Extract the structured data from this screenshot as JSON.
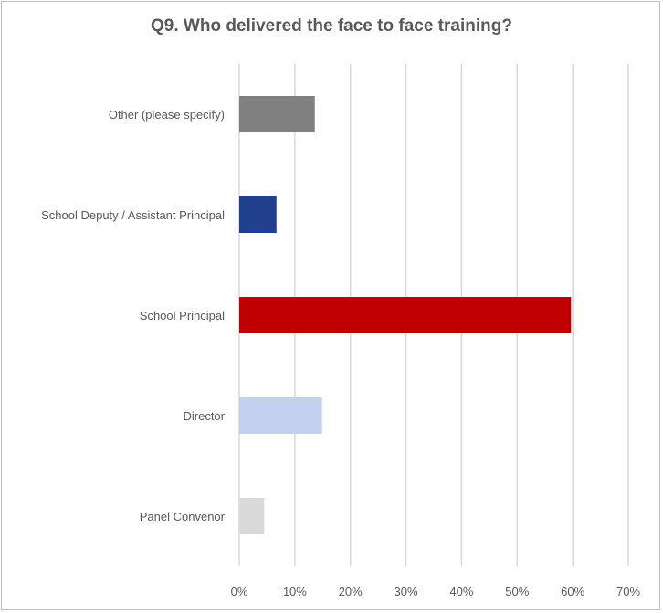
{
  "chart_data": {
    "type": "bar",
    "orientation": "horizontal",
    "title": "Q9. Who delivered the face to face training?",
    "categories": [
      "Other (please specify)",
      "School Deputy / Assistant Principal",
      "School Principal",
      "Director",
      "Panel Convenor"
    ],
    "values": [
      0.136,
      0.067,
      0.597,
      0.149,
      0.045
    ],
    "colors": [
      "#808080",
      "#213f8f",
      "#c00000",
      "#c3d0f0",
      "#d9d9d9"
    ],
    "xlim": [
      0,
      0.7
    ],
    "xticks": [
      0,
      0.1,
      0.2,
      0.3,
      0.4,
      0.5,
      0.6,
      0.7
    ],
    "xtick_labels": [
      "0%",
      "10%",
      "20%",
      "30%",
      "40%",
      "50%",
      "60%",
      "70%"
    ],
    "grid": "vertical",
    "gridline_color": "#d9d9d9",
    "legend": "none"
  }
}
